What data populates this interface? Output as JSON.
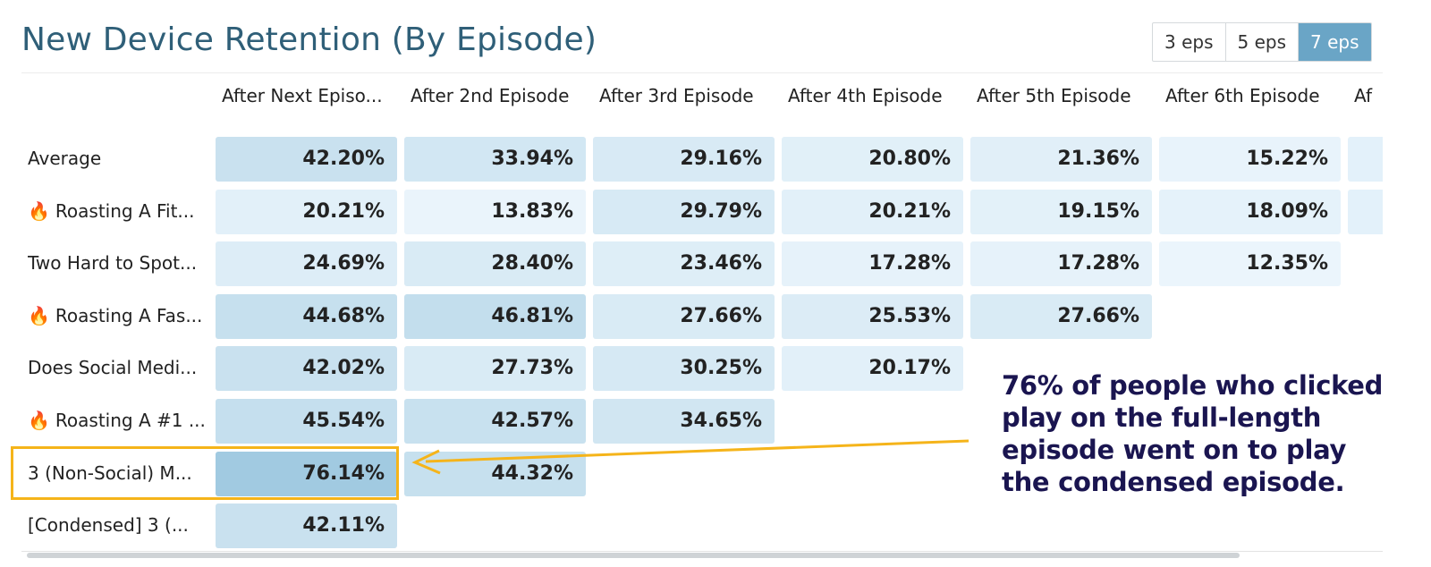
{
  "header": {
    "title": "New Device Retention (By Episode)",
    "toggle": {
      "options": [
        "3 eps",
        "5 eps",
        "7 eps"
      ],
      "selected": "7 eps"
    }
  },
  "colors": {
    "cell_min": "#eef7fd",
    "cell_max": "#a4cde3",
    "accent": "#6aa5c6",
    "highlight": "#f5b41a",
    "annotation_text": "#1a1550"
  },
  "chart_data": {
    "type": "heatmap",
    "columns": [
      "After Next Episo...",
      "After 2nd Episode",
      "After 3rd Episode",
      "After 4th Episode",
      "After 5th Episode",
      "After 6th Episode",
      "Af"
    ],
    "rows": [
      {
        "label": "Average",
        "icon": "",
        "values": [
          "42.20%",
          "33.94%",
          "29.16%",
          "20.80%",
          "21.36%",
          "15.22%",
          ""
        ]
      },
      {
        "label": "Roasting A Fit...",
        "icon": "fire-icon",
        "values": [
          "20.21%",
          "13.83%",
          "29.79%",
          "20.21%",
          "19.15%",
          "18.09%",
          ""
        ]
      },
      {
        "label": "Two Hard to Spot...",
        "icon": "",
        "values": [
          "24.69%",
          "28.40%",
          "23.46%",
          "17.28%",
          "17.28%",
          "12.35%"
        ]
      },
      {
        "label": "Roasting A Fas...",
        "icon": "fire-icon",
        "values": [
          "44.68%",
          "46.81%",
          "27.66%",
          "25.53%",
          "27.66%"
        ]
      },
      {
        "label": "Does Social Medi...",
        "icon": "",
        "values": [
          "42.02%",
          "27.73%",
          "30.25%",
          "20.17%"
        ]
      },
      {
        "label": "Roasting A #1 ...",
        "icon": "fire-icon",
        "values": [
          "45.54%",
          "42.57%",
          "34.65%"
        ]
      },
      {
        "label": "3 (Non-Social) M...",
        "icon": "",
        "values": [
          "76.14%",
          "44.32%"
        ]
      },
      {
        "label": "[Condensed] 3 (...",
        "icon": "",
        "values": [
          "42.11%"
        ]
      }
    ],
    "highlighted_row_label": "3 (Non-Social) M...",
    "annotation": "76% of people who clicked play on the full-length episode went on to play the condensed episode."
  }
}
